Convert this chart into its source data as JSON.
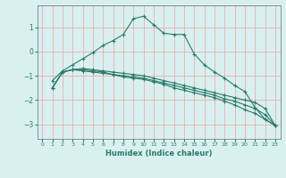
{
  "xlabel": "Humidex (Indice chaleur)",
  "bg_color": "#d8f0f0",
  "grid_color": "#f0a0a0",
  "line_color": "#2a7a6a",
  "spine_color": "#808080",
  "xlim": [
    -0.5,
    23.5
  ],
  "ylim": [
    -3.6,
    1.9
  ],
  "yticks": [
    -3,
    -2,
    -1,
    0,
    1
  ],
  "xticks": [
    0,
    1,
    2,
    3,
    4,
    5,
    6,
    7,
    8,
    9,
    10,
    11,
    12,
    13,
    14,
    15,
    16,
    17,
    18,
    19,
    20,
    21,
    22,
    23
  ],
  "series": [
    {
      "x": [
        1,
        2,
        3,
        4,
        5,
        6,
        7,
        8,
        9,
        10,
        11,
        12,
        13,
        14,
        15,
        16,
        17,
        18,
        19,
        20,
        21,
        22,
        23
      ],
      "y": [
        -1.2,
        -0.8,
        -0.55,
        -0.3,
        -0.05,
        0.25,
        0.45,
        0.7,
        1.35,
        1.45,
        1.1,
        0.75,
        0.7,
        0.7,
        -0.1,
        -0.55,
        -0.85,
        -1.1,
        -1.4,
        -1.65,
        -2.3,
        -2.8,
        -3.05
      ]
    },
    {
      "x": [
        1,
        2,
        3,
        4,
        5,
        6,
        7,
        8,
        9,
        10,
        11,
        12,
        13,
        14,
        15,
        16,
        17,
        18,
        19,
        20,
        21,
        22,
        23
      ],
      "y": [
        -1.5,
        -0.85,
        -0.75,
        -0.7,
        -0.75,
        -0.8,
        -0.85,
        -0.9,
        -0.95,
        -1.0,
        -1.1,
        -1.2,
        -1.3,
        -1.4,
        -1.5,
        -1.6,
        -1.7,
        -1.8,
        -1.9,
        -2.0,
        -2.1,
        -2.35,
        -3.05
      ]
    },
    {
      "x": [
        1,
        2,
        3,
        4,
        5,
        6,
        7,
        8,
        9,
        10,
        11,
        12,
        13,
        14,
        15,
        16,
        17,
        18,
        19,
        20,
        21,
        22,
        23
      ],
      "y": [
        -1.5,
        -0.85,
        -0.75,
        -0.75,
        -0.8,
        -0.85,
        -0.95,
        -1.0,
        -1.05,
        -1.1,
        -1.2,
        -1.3,
        -1.4,
        -1.5,
        -1.6,
        -1.7,
        -1.8,
        -1.95,
        -2.05,
        -2.2,
        -2.35,
        -2.6,
        -3.05
      ]
    },
    {
      "x": [
        1,
        2,
        3,
        4,
        5,
        6,
        7,
        8,
        9,
        10,
        11,
        12,
        13,
        14,
        15,
        16,
        17,
        18,
        19,
        20,
        21,
        22,
        23
      ],
      "y": [
        -1.5,
        -0.85,
        -0.75,
        -0.8,
        -0.85,
        -0.9,
        -0.95,
        -1.05,
        -1.1,
        -1.15,
        -1.25,
        -1.35,
        -1.5,
        -1.6,
        -1.7,
        -1.8,
        -1.9,
        -2.05,
        -2.2,
        -2.4,
        -2.55,
        -2.8,
        -3.05
      ]
    }
  ]
}
